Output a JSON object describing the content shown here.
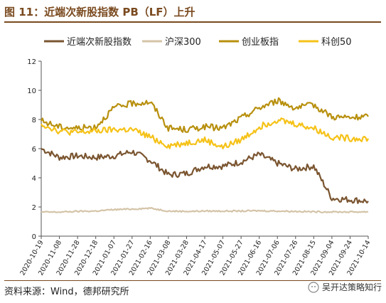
{
  "figure": {
    "title": "图 11：近端次新股指数 PB（LF）上升",
    "source": "资料来源：Wind，德邦研究所",
    "watermark": "吴开达策略知行"
  },
  "chart_data": {
    "type": "line",
    "title": "",
    "xlabel": "",
    "ylabel": "",
    "ylim": [
      0,
      12
    ],
    "yticks": [
      0,
      2,
      4,
      6,
      8,
      10,
      12
    ],
    "grid": false,
    "legend_position": "top",
    "x": [
      "2020-10-19",
      "2020-11-08",
      "2020-11-28",
      "2020-12-18",
      "2021-01-07",
      "2021-01-27",
      "2021-02-16",
      "2021-03-08",
      "2021-03-28",
      "2021-04-17",
      "2021-05-07",
      "2021-05-27",
      "2021-06-16",
      "2021-07-06",
      "2021-07-26",
      "2021-08-15",
      "2021-09-04",
      "2021-09-24",
      "2021-10-14"
    ],
    "series": [
      {
        "name": "近端次新股指数",
        "color": "#7a5530",
        "values": [
          6.0,
          5.4,
          5.5,
          5.4,
          5.5,
          5.8,
          5.2,
          4.2,
          4.3,
          4.8,
          4.8,
          5.1,
          5.6,
          5.0,
          4.6,
          4.8,
          2.6,
          2.5,
          2.4
        ]
      },
      {
        "name": "沪深300",
        "color": "#d4c4a8",
        "values": [
          1.65,
          1.65,
          1.7,
          1.72,
          1.82,
          1.86,
          1.92,
          1.72,
          1.7,
          1.72,
          1.72,
          1.72,
          1.74,
          1.72,
          1.7,
          1.67,
          1.66,
          1.66,
          1.67
        ]
      },
      {
        "name": "创业板指",
        "color": "#b8900e",
        "values": [
          7.9,
          7.5,
          7.4,
          7.5,
          8.8,
          9.1,
          9.2,
          7.4,
          7.3,
          7.5,
          7.4,
          8.1,
          8.8,
          9.3,
          8.8,
          9.0,
          8.2,
          8.1,
          8.2
        ]
      },
      {
        "name": "科创50",
        "color": "#f5c218",
        "values": [
          7.7,
          7.2,
          7.1,
          7.2,
          7.3,
          7.3,
          6.8,
          6.2,
          6.4,
          6.6,
          6.1,
          6.6,
          7.5,
          8.0,
          7.7,
          7.4,
          6.8,
          6.7,
          6.7
        ]
      }
    ]
  }
}
